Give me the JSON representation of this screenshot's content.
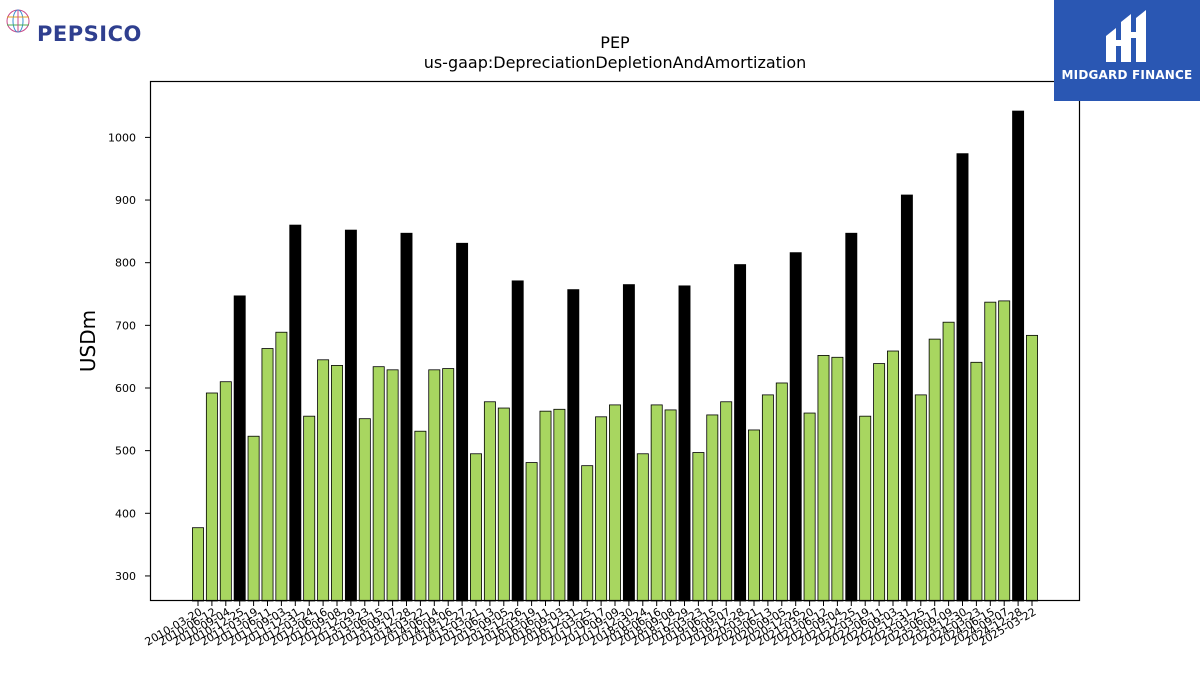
{
  "brand": {
    "left_logo_text": "PEPSICO",
    "right_logo_text": "MIDGARD FINANCE",
    "pepsico_color": "#2f3f8f",
    "midgard_bg": "#2a57b3"
  },
  "chart_data": {
    "type": "bar",
    "title": "PEP",
    "subtitle": "us-gaap:DepreciationDepletionAndAmortization",
    "xlabel": "",
    "ylabel": "USDm",
    "ylim": [
      260,
      1090
    ],
    "yticks": [
      300,
      400,
      500,
      600,
      700,
      800,
      900,
      1000
    ],
    "grid": false,
    "colors": {
      "quarter": "#a8d660",
      "annual": "#000000",
      "edge": "#000000"
    },
    "categories": [
      "2010-03-20",
      "2010-06-12",
      "2010-09-04",
      "2010-12-25",
      "2011-03-19",
      "2011-06-11",
      "2011-09-03",
      "2011-12-31",
      "2012-03-24",
      "2012-06-16",
      "2012-09-08",
      "2012-12-29",
      "2013-03-23",
      "2013-06-15",
      "2013-09-07",
      "2013-12-28",
      "2014-03-22",
      "2014-06-14",
      "2014-09-06",
      "2014-12-27",
      "2015-03-21",
      "2015-06-13",
      "2015-09-05",
      "2015-12-26",
      "2016-03-19",
      "2016-06-11",
      "2016-09-03",
      "2016-12-31",
      "2017-03-25",
      "2017-06-17",
      "2017-09-09",
      "2017-12-30",
      "2018-03-24",
      "2018-06-16",
      "2018-09-08",
      "2018-12-29",
      "2019-03-23",
      "2019-06-15",
      "2019-09-07",
      "2019-12-28",
      "2020-03-21",
      "2020-06-13",
      "2020-09-05",
      "2020-12-26",
      "2021-03-20",
      "2021-06-12",
      "2021-09-04",
      "2021-12-25",
      "2022-03-19",
      "2022-06-11",
      "2022-09-03",
      "2022-12-31",
      "2023-03-25",
      "2023-06-17",
      "2023-09-09",
      "2023-12-30",
      "2024-03-23",
      "2024-06-15",
      "2024-09-07",
      "2024-12-28",
      "2025-03-22"
    ],
    "values": [
      377,
      592,
      610,
      747,
      523,
      663,
      689,
      860,
      555,
      645,
      636,
      852,
      551,
      634,
      629,
      847,
      531,
      629,
      631,
      831,
      495,
      578,
      568,
      771,
      481,
      563,
      566,
      757,
      476,
      554,
      573,
      765,
      495,
      573,
      565,
      763,
      497,
      557,
      578,
      797,
      533,
      589,
      608,
      816,
      560,
      652,
      649,
      847,
      555,
      639,
      659,
      908,
      589,
      678,
      705,
      974,
      641,
      737,
      739,
      1042,
      684
    ],
    "annual_flags": [
      0,
      0,
      0,
      1,
      0,
      0,
      0,
      1,
      0,
      0,
      0,
      1,
      0,
      0,
      0,
      1,
      0,
      0,
      0,
      1,
      0,
      0,
      0,
      1,
      0,
      0,
      0,
      1,
      0,
      0,
      0,
      1,
      0,
      0,
      0,
      1,
      0,
      0,
      0,
      1,
      0,
      0,
      0,
      1,
      0,
      0,
      0,
      1,
      0,
      0,
      0,
      1,
      0,
      0,
      0,
      1,
      0,
      0,
      0,
      1,
      0
    ]
  }
}
